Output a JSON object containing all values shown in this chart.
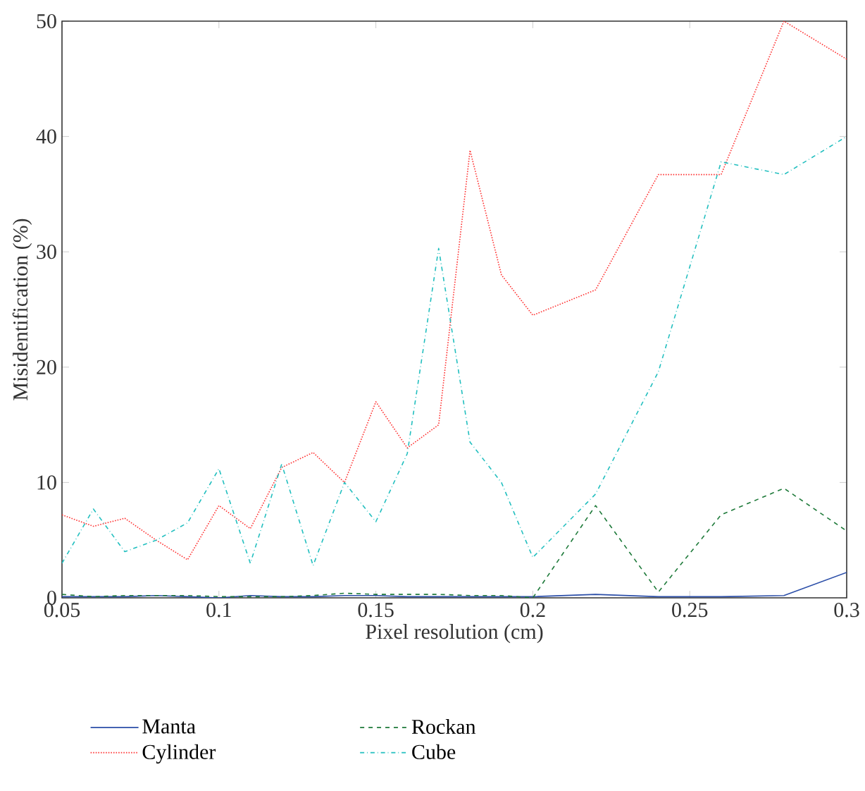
{
  "chart_data": {
    "type": "line",
    "xlabel": "Pixel resolution (cm)",
    "ylabel": "Misidentification (%)",
    "x": [
      0.05,
      0.06,
      0.07,
      0.08,
      0.09,
      0.1,
      0.11,
      0.12,
      0.13,
      0.14,
      0.15,
      0.16,
      0.17,
      0.18,
      0.19,
      0.2,
      0.22,
      0.24,
      0.26,
      0.28,
      0.3
    ],
    "series": [
      {
        "name": "Manta",
        "color": "#2b4ea8",
        "line_style": "solid",
        "values": [
          0.1,
          0.1,
          0.1,
          0.2,
          0.1,
          0.0,
          0.2,
          0.1,
          0.1,
          0.2,
          0.2,
          0.1,
          0.1,
          0.1,
          0.1,
          0.1,
          0.3,
          0.1,
          0.1,
          0.2,
          2.2
        ]
      },
      {
        "name": "Rockan",
        "color": "#1e7a3a",
        "line_style": "dashed",
        "values": [
          0.3,
          0.1,
          0.2,
          0.2,
          0.2,
          0.1,
          0.1,
          0.1,
          0.2,
          0.4,
          0.3,
          0.3,
          0.3,
          0.2,
          0.2,
          0.0,
          8.0,
          0.5,
          7.2,
          9.5,
          5.8
        ]
      },
      {
        "name": "Cylinder",
        "color": "#ff3333",
        "line_style": "dotted",
        "values": [
          7.2,
          6.2,
          6.9,
          5.0,
          3.3,
          8.0,
          6.0,
          11.3,
          12.6,
          10.0,
          17.0,
          13.0,
          15.0,
          38.8,
          28.0,
          24.5,
          26.7,
          36.7,
          36.7,
          50,
          46.7
        ]
      },
      {
        "name": "Cube",
        "color": "#22bfbf",
        "line_style": "dashdot",
        "values": [
          3.0,
          7.7,
          4.0,
          5.0,
          6.5,
          11.2,
          3.0,
          11.6,
          2.8,
          10.0,
          6.6,
          12.5,
          30.3,
          13.5,
          10.0,
          3.5,
          9.0,
          19.6,
          37.8,
          36.7,
          40
        ]
      }
    ],
    "xlim": [
      0.05,
      0.3
    ],
    "ylim": [
      0,
      50
    ],
    "xticks": [
      0.05,
      0.1,
      0.15,
      0.2,
      0.25,
      0.3
    ],
    "yticks": [
      0,
      10,
      20,
      30,
      40,
      50
    ],
    "grid": false,
    "legend": "bottom"
  }
}
